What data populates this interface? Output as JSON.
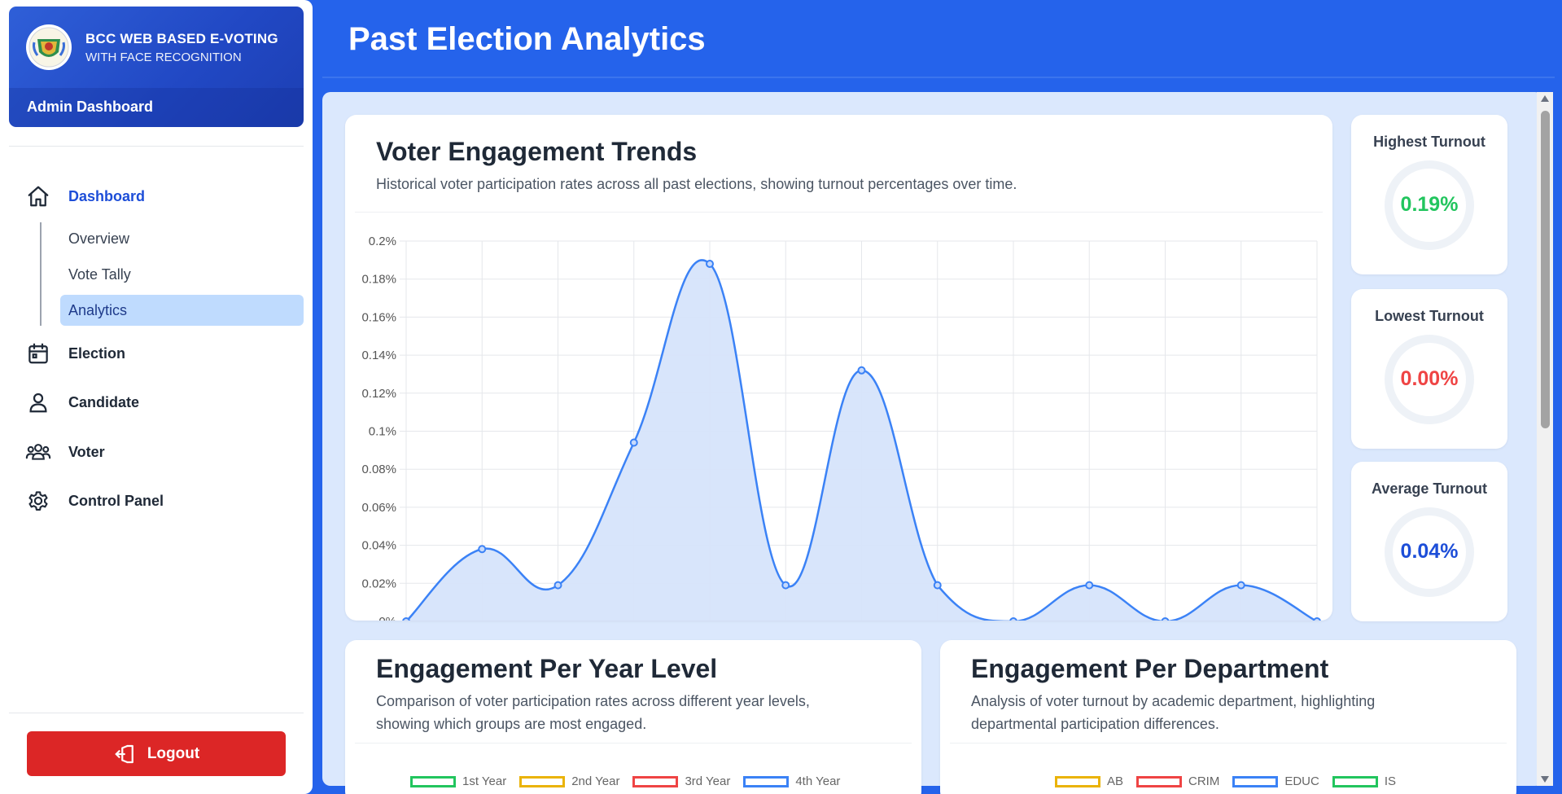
{
  "brand": {
    "title": "BCC WEB BASED E-VOTING",
    "subtitle": "WITH FACE RECOGNITION",
    "section": "Admin Dashboard"
  },
  "nav": {
    "dashboard": "Dashboard",
    "sub": [
      "Overview",
      "Vote Tally",
      "Analytics"
    ],
    "election": "Election",
    "candidate": "Candidate",
    "voter": "Voter",
    "control_panel": "Control Panel",
    "logout": "Logout"
  },
  "header": {
    "title": "Past Election Analytics"
  },
  "trends": {
    "title": "Voter Engagement Trends",
    "desc": "Historical voter participation rates across all past elections, showing turnout percentages over time."
  },
  "stats": {
    "highest": {
      "label": "Highest Turnout",
      "value": "0.19%",
      "color": "#22c55e"
    },
    "lowest": {
      "label": "Lowest Turnout",
      "value": "0.00%",
      "color": "#ef4444"
    },
    "average": {
      "label": "Average Turnout",
      "value": "0.04%",
      "color": "#1d4ed8"
    }
  },
  "year_level": {
    "title": "Engagement Per Year Level",
    "desc": "Comparison of voter participation rates across different year levels, showing which groups are most engaged.",
    "legend": [
      {
        "label": "1st Year",
        "color": "#22c55e"
      },
      {
        "label": "2nd Year",
        "color": "#eab308"
      },
      {
        "label": "3rd Year",
        "color": "#ef4444"
      },
      {
        "label": "4th Year",
        "color": "#3b82f6"
      }
    ]
  },
  "department": {
    "title": "Engagement Per Department",
    "desc": "Analysis of voter turnout by academic department, highlighting departmental participation differences.",
    "legend": [
      {
        "label": "AB",
        "color": "#eab308"
      },
      {
        "label": "CRIM",
        "color": "#ef4444"
      },
      {
        "label": "EDUC",
        "color": "#3b82f6"
      },
      {
        "label": "IS",
        "color": "#22c55e"
      }
    ]
  },
  "chart_data": {
    "type": "area",
    "x": [
      1,
      2,
      3,
      4,
      5,
      6,
      7,
      8,
      9,
      10,
      11,
      12,
      13
    ],
    "series": [
      {
        "values": [
          0,
          0.038,
          0.019,
          0.094,
          0.188,
          0.019,
          0.132,
          0.019,
          0,
          0.019,
          0,
          0.019,
          0
        ]
      }
    ],
    "y_ticks": [
      "0%",
      "0.02%",
      "0.04%",
      "0.06%",
      "0.08%",
      "0.1%",
      "0.12%",
      "0.14%",
      "0.16%",
      "0.18%",
      "0.2%"
    ],
    "ylim": [
      0,
      0.2
    ],
    "grid": true,
    "line_color": "#3b82f6",
    "fill_color": "#d6e4fb"
  }
}
